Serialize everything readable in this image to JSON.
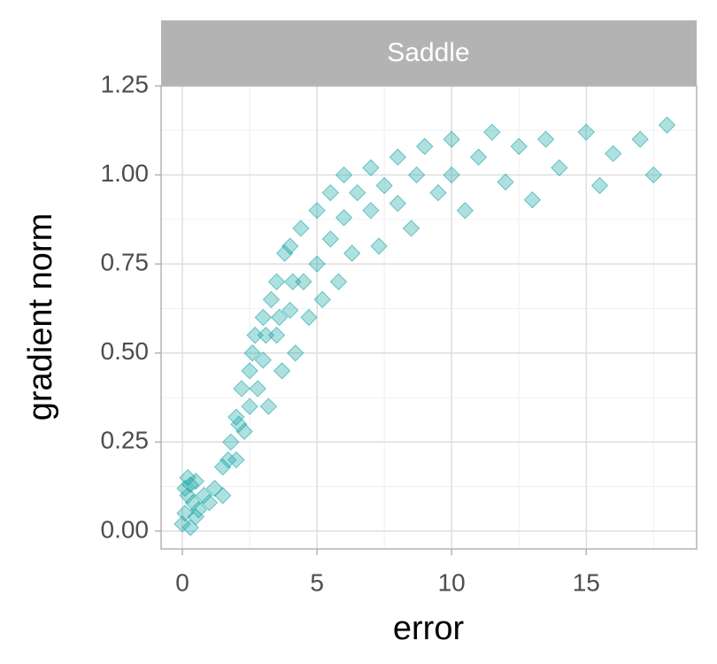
{
  "chart_data": {
    "type": "scatter",
    "panel": "Saddle",
    "x_label": "error",
    "y_label": "gradient norm",
    "color": "#1aa5a5",
    "grid": true,
    "xlim": [
      -0.79,
      19.1
    ],
    "ylim": [
      -0.05,
      1.25
    ],
    "xticks": [
      0,
      5,
      10,
      15
    ],
    "yticks": [
      {
        "value": 0,
        "label": "0.00"
      },
      {
        "value": 0.25,
        "label": "0.25"
      },
      {
        "value": 0.5,
        "label": "0.50"
      },
      {
        "value": 0.75,
        "label": "0.75"
      },
      {
        "value": 1,
        "label": "1.00"
      },
      {
        "value": 1.25,
        "label": "1.25"
      }
    ],
    "x": [
      0,
      0.1,
      0.2,
      0.3,
      0.1,
      0.4,
      0.5,
      0.3,
      0.6,
      0.8,
      0.2,
      0.5,
      1,
      1.2,
      1.5,
      1.5,
      1.8,
      2,
      2,
      2.2,
      2.3,
      2.5,
      2.5,
      2.7,
      2.8,
      3,
      3,
      3.2,
      3.3,
      3.5,
      3.5,
      3.7,
      3.8,
      4,
      4,
      4.2,
      4.4,
      4.5,
      4.7,
      5,
      5,
      5.2,
      5.5,
      5.5,
      5.8,
      6,
      6,
      6.3,
      6.5,
      7,
      7,
      7.3,
      7.5,
      8,
      8,
      8.5,
      8.7,
      9,
      9.5,
      10,
      10,
      10.5,
      11,
      11.5,
      12,
      12.5,
      13,
      13.5,
      14,
      15,
      15.5,
      16,
      17,
      17.5,
      18,
      2.6,
      3.1,
      3.6,
      4.1,
      1.7,
      2.1
    ],
    "y": [
      0.02,
      0.05,
      0.1,
      0.13,
      0.12,
      0.08,
      0.04,
      0.01,
      0.06,
      0.1,
      0.15,
      0.14,
      0.08,
      0.12,
      0.18,
      0.1,
      0.25,
      0.2,
      0.32,
      0.4,
      0.28,
      0.45,
      0.35,
      0.55,
      0.4,
      0.6,
      0.48,
      0.35,
      0.65,
      0.55,
      0.7,
      0.45,
      0.78,
      0.62,
      0.8,
      0.5,
      0.85,
      0.7,
      0.6,
      0.9,
      0.75,
      0.65,
      0.95,
      0.82,
      0.7,
      1,
      0.88,
      0.78,
      0.95,
      1.02,
      0.9,
      0.8,
      0.97,
      1.05,
      0.92,
      0.85,
      1,
      1.08,
      0.95,
      1.1,
      1,
      0.9,
      1.05,
      1.12,
      0.98,
      1.08,
      0.93,
      1.1,
      1.02,
      1.12,
      0.97,
      1.06,
      1.1,
      1,
      1.14,
      0.5,
      0.55,
      0.6,
      0.7,
      0.2,
      0.3
    ]
  }
}
